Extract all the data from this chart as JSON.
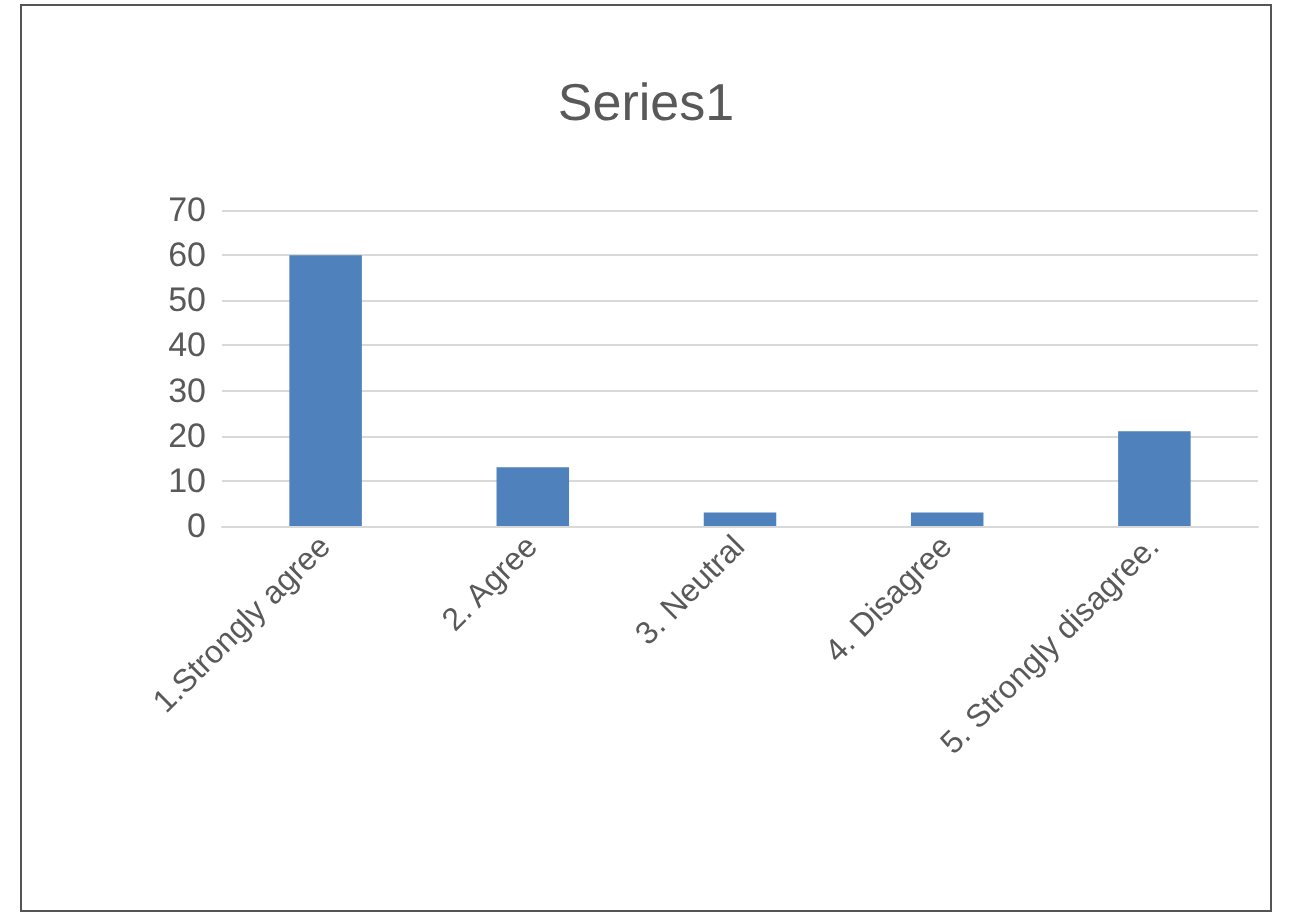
{
  "chart_data": {
    "type": "bar",
    "title": "Series1",
    "categories": [
      "1.Strongly agree",
      "2. Agree",
      "3. Neutral",
      "4. Disagree",
      "5. Strongly disagree."
    ],
    "values": [
      60,
      13,
      3,
      3,
      21
    ],
    "color": "#4f81bd",
    "ylim": [
      0,
      70
    ],
    "yticks": [
      0,
      10,
      20,
      30,
      40,
      50,
      60,
      70
    ],
    "grid": "y"
  }
}
